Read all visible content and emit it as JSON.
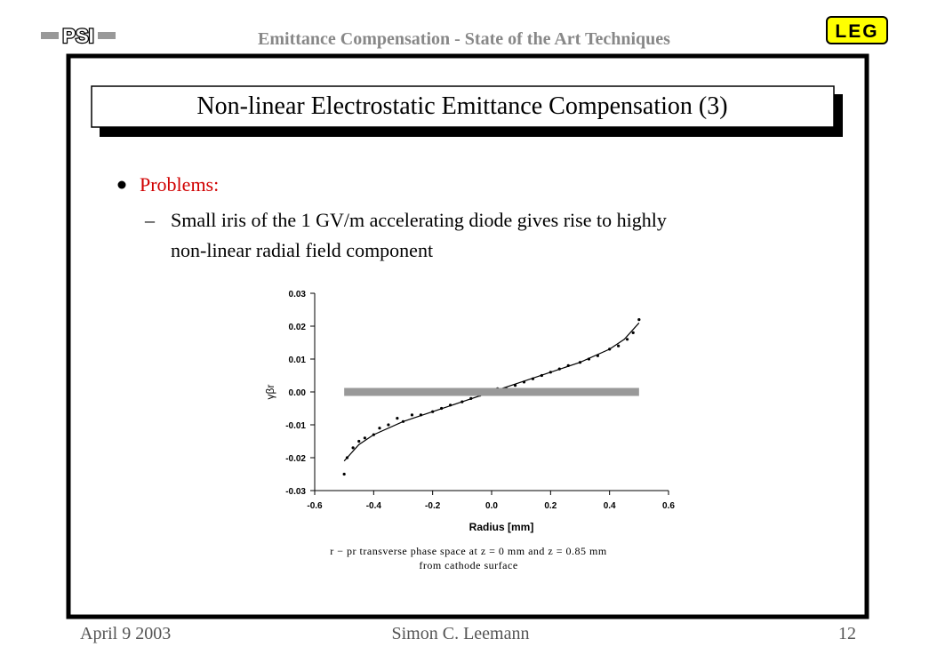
{
  "header": {
    "logo_left": "PSI",
    "title": "Emittance Compensation - State of the Art Techniques",
    "logo_right": "LEG"
  },
  "slide": {
    "title": "Non-linear Electrostatic Emittance Compensation (3)",
    "bullet": "Problems:",
    "subbullet": [
      "Small iris of the 1 GV/m accelerating diode gives rise to highly",
      "non-linear radial field component"
    ]
  },
  "chart_data": {
    "type": "scatter",
    "xlabel": "Radius [mm]",
    "ylabel": "γβr",
    "caption": [
      "r − pr transverse phase space at z = 0 mm and z = 0.85 mm",
      "from cathode surface"
    ],
    "xlim": [
      -0.6,
      0.6
    ],
    "ylim": [
      -0.03,
      0.03
    ],
    "xticks": [
      -0.6,
      -0.4,
      -0.2,
      {
        "value": 0,
        "label": "0.0"
      },
      0.2,
      0.4,
      0.6
    ],
    "yticks": [
      -0.03,
      -0.02,
      -0.01,
      {
        "value": 0,
        "label": "0.00"
      },
      0.01,
      0.02,
      0.03
    ],
    "series": [
      {
        "mode": "markers",
        "color": "#000000",
        "x": [
          -0.5,
          -0.49,
          -0.47,
          -0.45,
          -0.43,
          -0.4,
          -0.38,
          -0.35,
          -0.32,
          -0.3,
          -0.27,
          -0.24,
          -0.2,
          -0.17,
          -0.14,
          -0.1,
          -0.07,
          -0.04,
          -0.01,
          0.02,
          0.05,
          0.08,
          0.11,
          0.14,
          0.17,
          0.2,
          0.23,
          0.26,
          0.3,
          0.33,
          0.36,
          0.4,
          0.43,
          0.46,
          0.48,
          0.5
        ],
        "values": [
          -0.025,
          -0.02,
          -0.017,
          -0.015,
          -0.014,
          -0.013,
          -0.011,
          -0.01,
          -0.008,
          -0.009,
          -0.007,
          -0.007,
          -0.006,
          -0.005,
          -0.004,
          -0.003,
          -0.002,
          -0.001,
          0.0,
          0.001,
          0.001,
          0.002,
          0.003,
          0.004,
          0.005,
          0.006,
          0.007,
          0.008,
          0.009,
          0.01,
          0.011,
          0.013,
          0.014,
          0.016,
          0.018,
          0.022
        ]
      },
      {
        "mode": "lines",
        "color": "#000000",
        "x": [
          -0.5,
          -0.45,
          -0.4,
          -0.3,
          -0.2,
          -0.1,
          0,
          0.1,
          0.2,
          0.3,
          0.4,
          0.45,
          0.5
        ],
        "values": [
          -0.021,
          -0.016,
          -0.013,
          -0.009,
          -0.006,
          -0.003,
          0,
          0.003,
          0.006,
          0.009,
          0.013,
          0.016,
          0.021
        ]
      },
      {
        "mode": "band",
        "color": "#999999",
        "x": [
          -0.5,
          0.5
        ],
        "values": [
          0,
          0
        ]
      }
    ]
  },
  "footer": {
    "date": "April 9 2003",
    "author": "Simon C. Leemann",
    "page": "12"
  }
}
